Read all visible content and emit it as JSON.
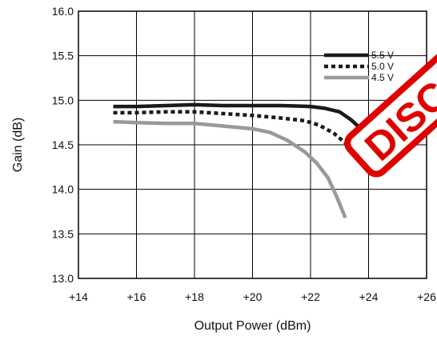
{
  "chart_data": {
    "type": "line",
    "xlabel": "Output Power (dBm)",
    "ylabel": "Gain (dB)",
    "xlim": [
      14,
      26
    ],
    "ylim": [
      13.0,
      16.0
    ],
    "x_ticks": [
      14,
      16,
      18,
      20,
      22,
      24,
      26
    ],
    "x_tick_labels": [
      "+14",
      "+16",
      "+18",
      "+20",
      "+22",
      "+24",
      "+26"
    ],
    "y_ticks": [
      13.0,
      13.5,
      14.0,
      14.5,
      15.0,
      15.5,
      16.0
    ],
    "y_tick_labels": [
      "13.0",
      "13.5",
      "14.0",
      "14.5",
      "15.0",
      "15.5",
      "16.0"
    ],
    "grid": true,
    "legend_position": "top-right",
    "series": [
      {
        "name": "5.5 V",
        "style": "solid",
        "color": "#1a1a1a",
        "x": [
          15.2,
          16,
          17,
          18,
          19,
          20,
          21,
          22,
          22.5,
          23,
          23.4,
          23.8,
          24.1
        ],
        "y": [
          14.93,
          14.93,
          14.94,
          14.95,
          14.94,
          14.94,
          14.94,
          14.93,
          14.91,
          14.87,
          14.78,
          14.66,
          14.59
        ]
      },
      {
        "name": "5.0 V",
        "style": "dotted",
        "color": "#1a1a1a",
        "x": [
          15.2,
          16,
          17,
          18,
          19,
          20,
          21,
          21.8,
          22.3,
          22.8,
          23.2,
          23.6,
          23.9
        ],
        "y": [
          14.86,
          14.86,
          14.87,
          14.87,
          14.85,
          14.83,
          14.8,
          14.77,
          14.72,
          14.63,
          14.52,
          14.38,
          14.23
        ]
      },
      {
        "name": "4.5 V",
        "style": "solid",
        "color": "#999999",
        "x": [
          15.2,
          16,
          17,
          18,
          19,
          20,
          20.6,
          21.2,
          21.8,
          22.2,
          22.6,
          22.9,
          23.2
        ],
        "y": [
          14.76,
          14.75,
          14.74,
          14.74,
          14.71,
          14.68,
          14.64,
          14.55,
          14.42,
          14.3,
          14.13,
          13.92,
          13.68
        ]
      }
    ]
  },
  "watermark": {
    "text": "DISC",
    "color": "#e00000"
  }
}
